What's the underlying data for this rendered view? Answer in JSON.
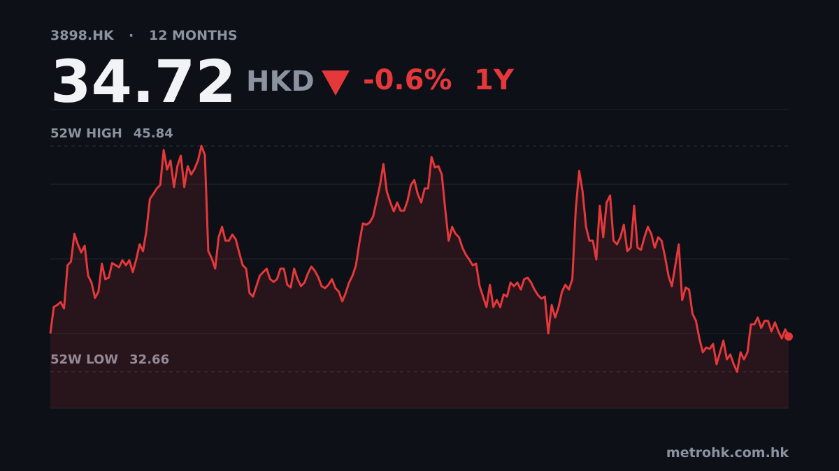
{
  "chart_data": {
    "type": "line",
    "ticker": "3898.HK",
    "separator": "·",
    "period_label": "12 MONTHS",
    "price": "34.72",
    "currency": "HKD",
    "change": "-0.6%",
    "range": "1Y",
    "high": {
      "label": "52W HIGH",
      "value": 45.84
    },
    "low": {
      "label": "52W LOW",
      "value": 32.66
    },
    "footer": "metrohk.com.hk",
    "color": "#e5383b",
    "ylim": [
      30.54,
      47.96
    ],
    "values": [
      34.9,
      36.44,
      36.56,
      36.73,
      36.36,
      38.88,
      39.09,
      40.71,
      40.1,
      39.62,
      40.02,
      38.27,
      37.87,
      36.97,
      37.34,
      38.97,
      38.07,
      38.15,
      39.01,
      38.88,
      38.76,
      39.17,
      38.88,
      39.17,
      38.48,
      39.21,
      40.1,
      39.7,
      40.92,
      42.75,
      43.03,
      43.36,
      43.56,
      45.6,
      44.46,
      44.99,
      43.44,
      44.66,
      45.27,
      43.44,
      44.66,
      44.17,
      44.5,
      44.99,
      45.84,
      45.31,
      39.7,
      39.29,
      38.68,
      40.51,
      41.12,
      40.31,
      40.31,
      40.67,
      40.39,
      39.62,
      38.88,
      38.68,
      37.26,
      37.05,
      37.66,
      38.27,
      38.48,
      38.68,
      38.07,
      37.91,
      38.07,
      38.68,
      38.68,
      37.74,
      37.58,
      38.68,
      38.07,
      37.66,
      37.87,
      38.4,
      38.8,
      38.56,
      38.19,
      37.66,
      37.54,
      37.74,
      38.07,
      37.54,
      37.34,
      36.77,
      37.26,
      37.87,
      38.27,
      38.88,
      40.19,
      41.32,
      41.24,
      41.37,
      41.73,
      42.63,
      43.56,
      44.78,
      43.16,
      42.54,
      42.02,
      42.54,
      42.06,
      42.06,
      42.63,
      43.56,
      43.85,
      43.03,
      42.54,
      43.36,
      43.36,
      45.19,
      44.58,
      44.66,
      44.17,
      42.14,
      40.31,
      41.12,
      40.71,
      40.51,
      39.9,
      39.49,
      39.21,
      38.88,
      38.97,
      37.66,
      37.05,
      36.44,
      37.74,
      36.44,
      36.85,
      36.44,
      37.18,
      37.05,
      37.87,
      37.66,
      37.87,
      37.46,
      38.07,
      38.15,
      37.87,
      37.46,
      37.13,
      36.93,
      37.05,
      34.9,
      36.56,
      35.83,
      36.44,
      37.34,
      37.74,
      37.46,
      38.07,
      42.14,
      44.38,
      43.16,
      41.12,
      40.31,
      40.31,
      39.21,
      42.34,
      40.51,
      42.54,
      42.95,
      40.31,
      40.1,
      40.51,
      41.24,
      39.7,
      39.9,
      42.34,
      39.9,
      39.78,
      40.51,
      41.12,
      40.71,
      39.9,
      40.51,
      40.31,
      39.37,
      38.27,
      37.66,
      38.88,
      40.1,
      36.85,
      37.58,
      37.46,
      36.04,
      35.63,
      34.61,
      33.8,
      34.08,
      34.0,
      34.29,
      33.11,
      33.8,
      34.49,
      33.39,
      33.68,
      33.11,
      32.66,
      33.8,
      33.39,
      33.8,
      35.43,
      35.43,
      35.83,
      35.22,
      35.63,
      35.63,
      35.02,
      35.55,
      35.02,
      34.61,
      35.14,
      34.72
    ]
  }
}
